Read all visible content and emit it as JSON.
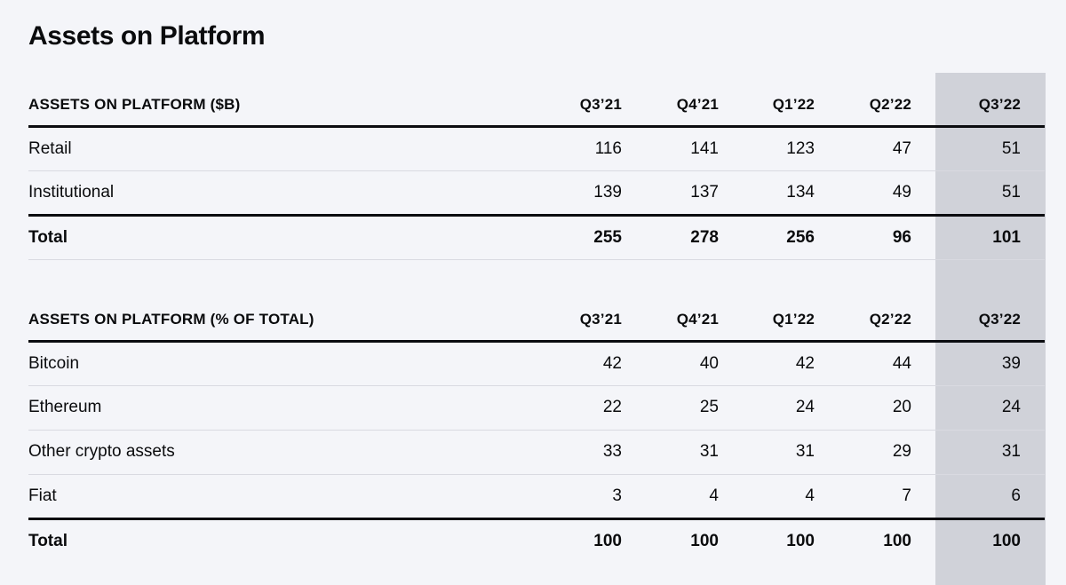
{
  "page": {
    "title": "Assets on Platform"
  },
  "colors": {
    "background": "#f4f5f9",
    "band": "#d0d2d9",
    "text": "#0a0b0d",
    "line_thin": "#d9dae1",
    "line_strong": "#0b0c10"
  },
  "highlighted_column": "Q3’22",
  "tables": [
    {
      "header_label": "ASSETS ON PLATFORM ($B)",
      "columns": [
        "Q3’21",
        "Q4’21",
        "Q1’22",
        "Q2’22",
        "Q3’22"
      ],
      "rows": [
        {
          "label": "Retail",
          "values": [
            116,
            141,
            123,
            47,
            51
          ]
        },
        {
          "label": "Institutional",
          "values": [
            139,
            137,
            134,
            49,
            51
          ]
        }
      ],
      "total_row": {
        "label": "Total",
        "values": [
          255,
          278,
          256,
          96,
          101
        ]
      }
    },
    {
      "header_label": "ASSETS ON PLATFORM (% OF TOTAL)",
      "columns": [
        "Q3’21",
        "Q4’21",
        "Q1’22",
        "Q2’22",
        "Q3’22"
      ],
      "rows": [
        {
          "label": "Bitcoin",
          "values": [
            42,
            40,
            42,
            44,
            39
          ]
        },
        {
          "label": "Ethereum",
          "values": [
            22,
            25,
            24,
            20,
            24
          ]
        },
        {
          "label": "Other crypto assets",
          "values": [
            33,
            31,
            31,
            29,
            31
          ]
        },
        {
          "label": "Fiat",
          "values": [
            3,
            4,
            4,
            7,
            6
          ]
        }
      ],
      "total_row": {
        "label": "Total",
        "values": [
          100,
          100,
          100,
          100,
          100
        ]
      }
    }
  ]
}
